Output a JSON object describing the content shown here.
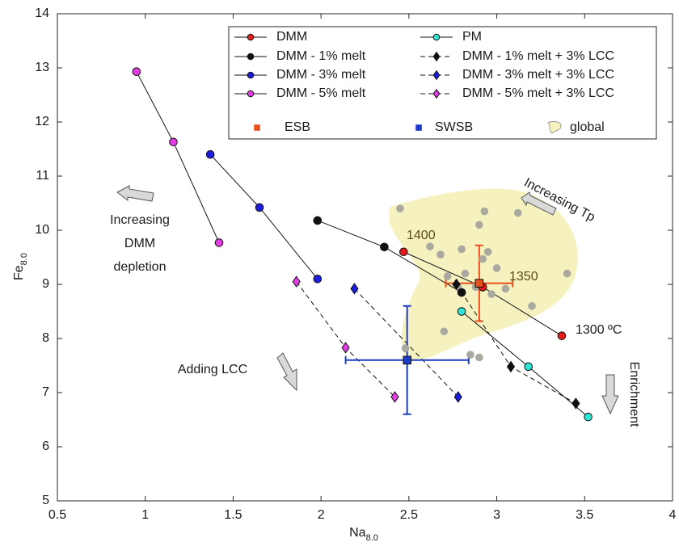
{
  "chart_data": {
    "type": "scatter",
    "xlabel": {
      "text": "Na",
      "sub": "8.0"
    },
    "ylabel": {
      "text": "Fe",
      "sub": "8.0"
    },
    "xlim": [
      0.5,
      4
    ],
    "ylim": [
      5,
      14
    ],
    "xticks": [
      0.5,
      1,
      1.5,
      2,
      2.5,
      3,
      3.5,
      4
    ],
    "yticks": [
      5,
      6,
      7,
      8,
      9,
      10,
      11,
      12,
      13,
      14
    ],
    "grid": false,
    "legend": "top-right",
    "series": [
      {
        "name": "DMM",
        "color": "#e41a1c",
        "marker": "o",
        "linestyle": "solid",
        "x": [
          2.47,
          2.92,
          3.37
        ],
        "y": [
          9.6,
          8.95,
          8.05
        ]
      },
      {
        "name": "DMM - 1% melt",
        "color": "#111111",
        "marker": "o",
        "linestyle": "solid",
        "x": [
          1.98,
          2.36,
          2.8
        ],
        "y": [
          10.18,
          9.69,
          8.85
        ]
      },
      {
        "name": "DMM - 3% melt",
        "color": "#1c1ce0",
        "marker": "o",
        "linestyle": "solid",
        "x": [
          1.37,
          1.65,
          1.98
        ],
        "y": [
          11.4,
          10.42,
          9.1
        ]
      },
      {
        "name": "DMM - 5% melt",
        "color": "#e43ce4",
        "marker": "o",
        "linestyle": "solid",
        "x": [
          0.95,
          1.16,
          1.42
        ],
        "y": [
          12.93,
          11.63,
          9.77
        ]
      },
      {
        "name": "PM",
        "color": "#2ee6d6",
        "marker": "o",
        "linestyle": "solid",
        "x": [
          2.8,
          3.18,
          3.52
        ],
        "y": [
          8.5,
          7.48,
          6.55
        ]
      },
      {
        "name": "DMM - 1% melt + 3% LCC",
        "color": "#111111",
        "marker": "d",
        "linestyle": "dashed",
        "x": [
          2.77,
          3.08,
          3.45
        ],
        "y": [
          9.0,
          7.48,
          6.8
        ]
      },
      {
        "name": "DMM - 3% melt + 3% LCC",
        "color": "#1c1ce0",
        "marker": "d",
        "linestyle": "dashed",
        "x": [
          2.19,
          2.78
        ],
        "y": [
          8.92,
          6.92
        ]
      },
      {
        "name": "DMM - 5% melt + 3% LCC",
        "color": "#e43ce4",
        "marker": "d",
        "linestyle": "dashed",
        "x": [
          1.86,
          2.14,
          2.42
        ],
        "y": [
          9.05,
          7.83,
          6.92
        ]
      },
      {
        "name": "ESB",
        "color": "#e8501c",
        "marker": "s",
        "linestyle": "none",
        "x": [
          2.9
        ],
        "y": [
          9.02
        ],
        "xerr": [
          0.19
        ],
        "yerr": [
          0.7
        ]
      },
      {
        "name": "SWSB",
        "color": "#1c3cc8",
        "marker": "s",
        "linestyle": "none",
        "x": [
          2.49
        ],
        "y": [
          7.6
        ],
        "xerr": [
          0.35
        ],
        "yerr": [
          1.0
        ]
      },
      {
        "name": "global",
        "color": "#a9a9a0",
        "marker": "o",
        "linestyle": "none",
        "x": [
          2.45,
          2.62,
          2.68,
          2.9,
          2.93,
          3.12,
          2.8,
          2.95,
          3.0,
          2.92,
          2.82,
          2.72,
          2.88,
          2.97,
          3.05,
          3.2,
          3.4,
          2.7,
          2.85,
          2.9,
          2.48,
          2.78
        ],
        "y": [
          10.4,
          9.7,
          9.55,
          10.1,
          10.35,
          10.32,
          9.65,
          9.6,
          9.3,
          9.47,
          9.2,
          9.15,
          8.95,
          8.82,
          8.92,
          8.6,
          9.2,
          8.13,
          7.7,
          7.65,
          7.82,
          8.95
        ]
      }
    ],
    "annotations": {
      "t1400": "1400",
      "t1350": "1350",
      "t1300": "1300 ºC",
      "tp": "Increasing Tp",
      "depletion": [
        "Increasing",
        "DMM",
        "depletion"
      ],
      "lcc": "Adding LCC",
      "enrichment": "Enrichment"
    }
  }
}
